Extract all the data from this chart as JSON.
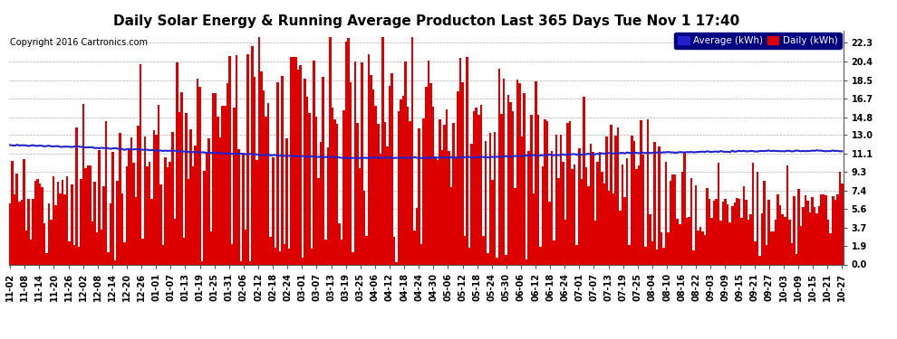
{
  "title": "Daily Solar Energy & Running Average Producton Last 365 Days Tue Nov 1 17:40",
  "copyright": "Copyright 2016 Cartronics.com",
  "ylabel_right": [
    "22.3",
    "20.4",
    "18.5",
    "16.7",
    "14.8",
    "13.0",
    "11.1",
    "9.3",
    "7.4",
    "5.6",
    "3.7",
    "1.9",
    "0.0"
  ],
  "yticks": [
    22.3,
    20.4,
    18.5,
    16.7,
    14.8,
    13.0,
    11.1,
    9.3,
    7.4,
    5.6,
    3.7,
    1.9,
    0.0
  ],
  "ymax": 23.5,
  "ymin": 0.0,
  "bar_color": "#dd0000",
  "avg_color": "#2222cc",
  "bg_color": "#ffffff",
  "plot_bg": "#ffffff",
  "grid_color": "#999999",
  "legend_bg_color": "#000080",
  "legend_avg_color": "#2222cc",
  "legend_daily_color": "#dd0000",
  "title_fontsize": 11,
  "copyright_fontsize": 7,
  "tick_fontsize": 7,
  "n_days": 365,
  "x_tick_labels": [
    "11-02",
    "11-08",
    "11-14",
    "11-20",
    "11-26",
    "12-02",
    "12-08",
    "12-14",
    "12-20",
    "12-26",
    "01-01",
    "01-07",
    "01-13",
    "01-19",
    "01-25",
    "01-31",
    "02-06",
    "02-12",
    "02-18",
    "02-24",
    "03-01",
    "03-07",
    "03-13",
    "03-19",
    "03-25",
    "04-06",
    "04-12",
    "04-18",
    "04-24",
    "04-30",
    "05-06",
    "05-12",
    "05-18",
    "05-24",
    "05-30",
    "06-06",
    "06-12",
    "06-18",
    "06-24",
    "07-01",
    "07-07",
    "07-13",
    "07-19",
    "07-25",
    "08-04",
    "08-10",
    "08-16",
    "08-22",
    "09-03",
    "09-09",
    "09-15",
    "09-21",
    "09-27",
    "10-03",
    "10-09",
    "10-15",
    "10-21",
    "10-27"
  ],
  "avg_curve_x": [
    0,
    30,
    60,
    90,
    120,
    150,
    180,
    210,
    240,
    270,
    300,
    330,
    364
  ],
  "avg_curve_y": [
    12.0,
    11.8,
    11.5,
    11.2,
    10.9,
    10.7,
    10.7,
    10.8,
    11.0,
    11.2,
    11.3,
    11.4,
    11.4
  ]
}
